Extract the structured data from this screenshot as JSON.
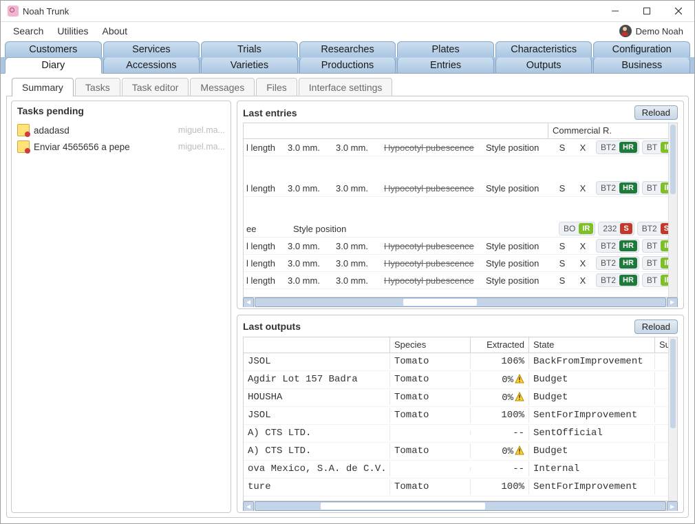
{
  "window": {
    "title": "Noah  Trunk"
  },
  "menu": {
    "items": [
      "Search",
      "Utilities",
      "About"
    ],
    "user": "Demo Noah"
  },
  "primaryTabs": {
    "row1": [
      "Customers",
      "Services",
      "Trials",
      "Researches",
      "Plates",
      "Characteristics",
      "Configuration"
    ],
    "row2": [
      "Diary",
      "Accessions",
      "Varieties",
      "Productions",
      "Entries",
      "Outputs",
      "Business"
    ],
    "activeRow2Index": 0
  },
  "subTabs": {
    "items": [
      "Summary",
      "Tasks",
      "Task editor",
      "Messages",
      "Files",
      "Interface settings"
    ],
    "activeIndex": 0
  },
  "tasks": {
    "title": "Tasks pending",
    "items": [
      {
        "label": "adadasd",
        "owner": "miguel.ma..."
      },
      {
        "label": "Enviar 4565656 a pepe",
        "owner": "miguel.ma..."
      }
    ]
  },
  "entries": {
    "title": "Last entries",
    "reload": "Reload",
    "headerRight": "Commercial R.",
    "hscroll": {
      "thumb_left_pct": 36,
      "thumb_width_pct": 18
    },
    "rows": [
      {
        "c1": "l length",
        "c2": "3.0 mm.",
        "c3": "3.0 mm.",
        "c4": "Hypocotyl pubescence",
        "strike": true,
        "c5": "Style position",
        "c6": "S",
        "c7": "X",
        "badges": [
          {
            "t": "BT2",
            "b": "HR",
            "bc": "#1e7a3a"
          },
          {
            "t": "BT",
            "b": "IR",
            "bc": "#7fbf2a"
          }
        ]
      },
      {
        "gap": true
      },
      {
        "c1": "l length",
        "c2": "3.0 mm.",
        "c3": "3.0 mm.",
        "c4": "Hypocotyl pubescence",
        "strike": true,
        "c5": "Style position",
        "c6": "S",
        "c7": "X",
        "badges": [
          {
            "t": "BT2",
            "b": "HR",
            "bc": "#1e7a3a"
          },
          {
            "t": "BT",
            "b": "IR",
            "bc": "#7fbf2a"
          }
        ]
      },
      {
        "gap": true
      },
      {
        "c1": "ee",
        "c2": "",
        "c3": "",
        "c4": "",
        "strike": false,
        "c5": "Style position",
        "c6": "",
        "c7": "",
        "leftShift": true,
        "badges": [
          {
            "t": "BO",
            "b": "IR",
            "bc": "#7fbf2a"
          },
          {
            "t": "232",
            "b": "S",
            "bc": "#c0392b"
          },
          {
            "t": "BT2",
            "b": "S",
            "bc": "#c0392b"
          }
        ]
      },
      {
        "c1": "l length",
        "c2": "3.0 mm.",
        "c3": "3.0 mm.",
        "c4": "Hypocotyl pubescence",
        "strike": true,
        "c5": "Style position",
        "c6": "S",
        "c7": "X",
        "badges": [
          {
            "t": "BT2",
            "b": "HR",
            "bc": "#1e7a3a"
          },
          {
            "t": "BT",
            "b": "IR",
            "bc": "#7fbf2a"
          }
        ]
      },
      {
        "c1": "l length",
        "c2": "3.0 mm.",
        "c3": "3.0 mm.",
        "c4": "Hypocotyl pubescence",
        "strike": true,
        "c5": "Style position",
        "c6": "S",
        "c7": "X",
        "badges": [
          {
            "t": "BT2",
            "b": "HR",
            "bc": "#1e7a3a"
          },
          {
            "t": "BT",
            "b": "IR",
            "bc": "#7fbf2a"
          }
        ]
      },
      {
        "c1": "l length",
        "c2": "3.0 mm.",
        "c3": "3.0 mm.",
        "c4": "Hypocotyl pubescence",
        "strike": true,
        "c5": "Style position",
        "c6": "S",
        "c7": "X",
        "badges": [
          {
            "t": "BT2",
            "b": "HR",
            "bc": "#1e7a3a"
          },
          {
            "t": "BT",
            "b": "IR",
            "bc": "#7fbf2a"
          }
        ]
      }
    ]
  },
  "outputs": {
    "title": "Last outputs",
    "reload": "Reload",
    "columns": [
      "",
      "Species",
      "Extracted",
      "State",
      "Subject"
    ],
    "hscroll": {
      "thumb_left_pct": 16,
      "thumb_width_pct": 40
    },
    "rows": [
      {
        "name": "JSOL",
        "species": "Tomato",
        "extracted": "106%",
        "warn": false,
        "state": "BackFromImprovement",
        "subject": ""
      },
      {
        "name": " Agdir Lot 157 Badra",
        "species": "Tomato",
        "extracted": "0%",
        "warn": true,
        "state": "Budget",
        "subject": ""
      },
      {
        "name": "HOUSHA",
        "species": "Tomato",
        "extracted": "0%",
        "warn": true,
        "state": "Budget",
        "subject": ""
      },
      {
        "name": "JSOL",
        "species": "Tomato",
        "extracted": "100%",
        "warn": false,
        "state": "SentForImprovement",
        "subject": ""
      },
      {
        "name": "A) CTS LTD.",
        "species": "",
        "extracted": "--",
        "warn": false,
        "state": "SentOfficial",
        "subject": ""
      },
      {
        "name": "A) CTS LTD.",
        "species": "Tomato",
        "extracted": "0%",
        "warn": true,
        "state": "Budget",
        "subject": ""
      },
      {
        "name": "ova Mexico, S.A. de C.V.",
        "species": "",
        "extracted": "--",
        "warn": false,
        "state": "Internal",
        "subject": ""
      },
      {
        "name": "ture",
        "species": "Tomato",
        "extracted": "100%",
        "warn": false,
        "state": "SentForImprovement",
        "subject": ""
      }
    ]
  },
  "colors": {
    "tab_bg_top": "#cddff0",
    "tab_bg_bot": "#aac6e2",
    "tab_border": "#87a6c5",
    "badge_hr": "#1e7a3a",
    "badge_ir": "#7fbf2a",
    "badge_s": "#c0392b",
    "scrollbar": "#c5d4e6"
  }
}
